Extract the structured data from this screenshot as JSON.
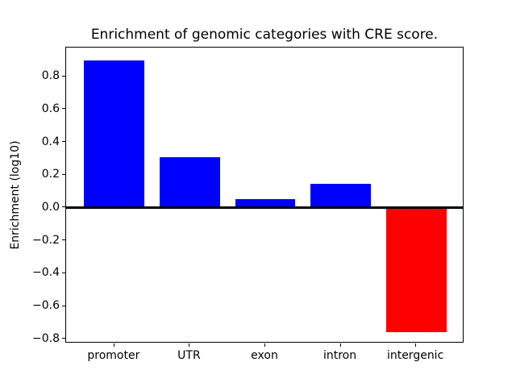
{
  "chart_data": {
    "type": "bar",
    "title": "Enrichment of genomic categories with CRE score.",
    "xlabel": "",
    "ylabel": "Enrichment (log10)",
    "categories": [
      "promoter",
      "UTR",
      "exon",
      "intron",
      "intergenic"
    ],
    "values": [
      0.9,
      0.31,
      0.055,
      0.145,
      -0.755
    ],
    "bar_colors": [
      "#0000ff",
      "#0000ff",
      "#0000ff",
      "#0000ff",
      "#ff0000"
    ],
    "positive_color": "#0000ff",
    "negative_color": "#ff0000",
    "axis_color": "#000000",
    "background_color": "#ffffff",
    "ylim": [
      -0.825,
      0.977
    ],
    "yticks": [
      0.8,
      0.6,
      0.4,
      0.2,
      0.0,
      -0.2,
      -0.4,
      -0.6,
      -0.8
    ],
    "ytick_labels": [
      "0.8",
      "0.6",
      "0.4",
      "0.2",
      "0.0",
      "−0.2",
      "−0.4",
      "−0.6",
      "−0.8"
    ],
    "zero_line": true,
    "grid": false,
    "legend": false,
    "bar_width_fraction": 0.8
  }
}
